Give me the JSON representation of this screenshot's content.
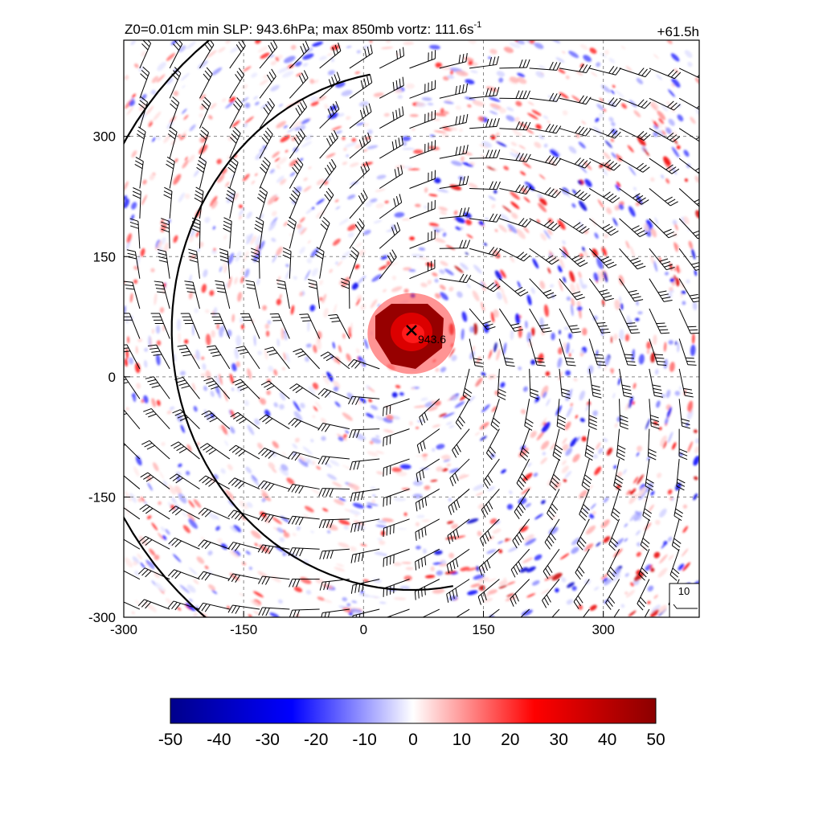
{
  "chart_data": {
    "type": "heatmap",
    "title": {
      "prefix": "Z0=0.01cm  min SLP: 943.6hPa; max 850mb vortz: 111.6s",
      "superscript": "-1"
    },
    "time_label": "+61.5h",
    "xlim": [
      -300,
      420
    ],
    "ylim": [
      -300,
      420
    ],
    "xticks": [
      -300,
      -150,
      0,
      150,
      300
    ],
    "xtick_labels": [
      "-300",
      "-150",
      "0",
      "150",
      "300"
    ],
    "yticks": [
      -300,
      -150,
      0,
      150,
      300
    ],
    "ytick_labels": [
      "-300",
      "-150",
      "0",
      "150",
      "300"
    ],
    "grid": true,
    "storm_center": {
      "x": 60,
      "y": 58,
      "marker": "x",
      "label": "943.6"
    },
    "core_max": 50,
    "reference_vector_label": "10",
    "colorbar": {
      "min": -50,
      "max": 50,
      "ticks": [
        -50,
        -40,
        -30,
        -20,
        -10,
        0,
        10,
        20,
        30,
        40,
        50
      ],
      "tick_labels": [
        "-50",
        "-40",
        "-30",
        "-20",
        "-10",
        "0",
        "10",
        "20",
        "30",
        "40",
        "50"
      ],
      "colors": [
        "#00008b",
        "#0000ff",
        "#ffffff",
        "#ff0000",
        "#8b0000"
      ]
    }
  }
}
